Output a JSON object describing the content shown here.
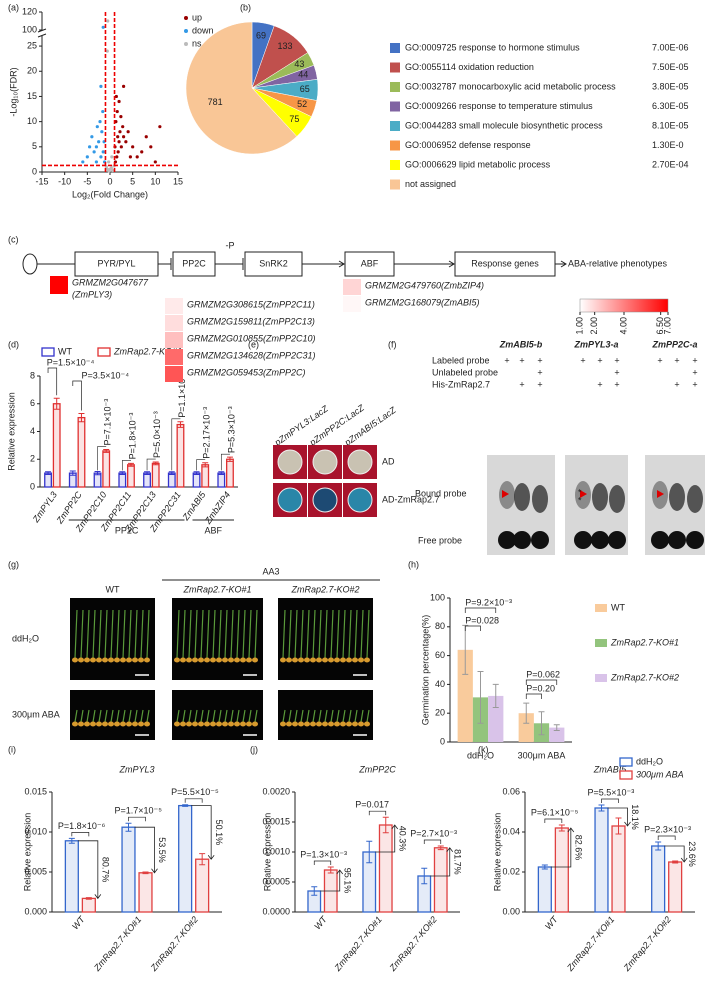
{
  "panel_labels": [
    "(a)",
    "(b)",
    "(c)",
    "(d)",
    "(e)",
    "(f)",
    "(g)",
    "(h)",
    "(i)",
    "(j)",
    "(k)"
  ],
  "chart_data": [
    {
      "type": "scatter",
      "xlabel": "Log₂(Fold Change)",
      "ylabel": "-Log₁₀(FDR)",
      "series": [
        {
          "name": "up",
          "color": "#990000",
          "x": [
            1.2,
            1.5,
            1.8,
            2,
            2.2,
            2.5,
            3,
            1.3,
            1.6,
            2,
            2.8,
            3.5,
            4,
            5,
            6,
            7,
            8,
            9,
            10,
            11,
            3,
            1.4,
            2.4,
            4.5,
            1.1,
            1.7
          ],
          "y": [
            2,
            3,
            4,
            6,
            8,
            5,
            7,
            10,
            12,
            14,
            9,
            6,
            8,
            5,
            3,
            4,
            7,
            5,
            2,
            9,
            17,
            15,
            11,
            3,
            5,
            7
          ]
        },
        {
          "name": "down",
          "color": "#3399e6",
          "x": [
            -1.2,
            -1.5,
            -2,
            -2.5,
            -3,
            -1.8,
            -2.2,
            -3.5,
            -4,
            -5,
            -6,
            -1.6,
            -2.8,
            -1.3,
            -2,
            -4.5,
            -3,
            -1.5
          ],
          "y": [
            2,
            4,
            3,
            6,
            5,
            8,
            10,
            4,
            7,
            3,
            2,
            12,
            9,
            6,
            17,
            5,
            2,
            103
          ]
        },
        {
          "name": "ns",
          "color": "#bbbbbb",
          "x": [
            -0.5,
            0.3,
            -0.8,
            0.6,
            0.9,
            -0.2,
            0.1,
            -0.6,
            -0.5,
            0.4,
            -0.3
          ],
          "y": [
            0.5,
            0.8,
            1,
            0.3,
            1.2,
            0.2,
            0.6,
            24,
            110,
            3,
            2
          ]
        }
      ],
      "xlim": [
        -15,
        15
      ],
      "xticks": [
        -15,
        -10,
        -5,
        0,
        5,
        10,
        15
      ],
      "ylim": [
        0,
        120
      ],
      "ybreak": [
        27,
        100
      ],
      "yticks": [
        0,
        5,
        10,
        15,
        20,
        25,
        100,
        120
      ],
      "thresholds": {
        "x": [
          -1,
          1
        ],
        "y": 1.3
      }
    },
    {
      "type": "pie",
      "categories": [
        "GO:0009725 response to hormone stimulus",
        "GO:0055114 oxidation reduction",
        "GO:0032787 monocarboxylic acid metabolic process",
        "GO:0009266 response to temperature stimulus",
        "GO:0044283 small molecule biosynthetic process",
        "GO:0006952 defense response",
        "GO:0006629 lipid metabolic process",
        "not assigned"
      ],
      "pvalues": [
        "7.00E-06",
        "7.50E-05",
        "3.80E-05",
        "6.30E-05",
        "8.10E-05",
        "1.30E-0",
        "2.70E-04",
        null
      ],
      "values": [
        69,
        133,
        43,
        44,
        65,
        52,
        75,
        781
      ],
      "colors": [
        "#4472c4",
        "#c0504d",
        "#9bbb59",
        "#8064a2",
        "#4bacc6",
        "#f79646",
        "#ffff00",
        "#f9c696"
      ]
    },
    {
      "type": "bar",
      "ylabel": "Relative expression",
      "categories": [
        "ZmPYL3",
        "ZmPP2C",
        "ZmPP2C10",
        "ZmPP2C11",
        "ZmPP2C13",
        "ZmPP2C31",
        "ZmABI5",
        "ZmbZIP4"
      ],
      "series": [
        {
          "name": "WT",
          "color": "#3333cc",
          "values": [
            1,
            1,
            1,
            1,
            1,
            1,
            1,
            1
          ],
          "errors": [
            0.1,
            0.15,
            0.12,
            0.1,
            0.1,
            0.1,
            0.1,
            0.1
          ]
        },
        {
          "name": "ZmRap2.7-KO#1",
          "color": "#e03030",
          "values": [
            6.0,
            5.0,
            2.6,
            1.6,
            1.7,
            4.5,
            1.6,
            2.0
          ],
          "errors": [
            0.4,
            0.3,
            0.1,
            0.1,
            0.1,
            0.2,
            0.15,
            0.15
          ]
        }
      ],
      "ylim": [
        0,
        8
      ],
      "yticks": [
        0,
        2,
        4,
        6,
        8
      ],
      "outline": true,
      "annotations": [
        "P=1.5×10⁻⁴",
        "P=3.5×10⁻⁴",
        "P=7.1×10⁻³",
        "P=1.8×10⁻³",
        "P=5.0×10⁻³",
        "P=1.1×10⁻⁵",
        "P=2.17×10⁻³",
        "P=5.3×10⁻³"
      ],
      "groups": [
        {
          "label": "PP2C",
          "span": [
            1,
            5
          ]
        },
        {
          "label": "ABF",
          "span": [
            6,
            7
          ]
        }
      ]
    },
    {
      "type": "bar",
      "ylabel": "Germination percentage(%)",
      "categories": [
        "ddH₂O",
        "300μm ABA"
      ],
      "series": [
        {
          "name": "WT",
          "color": "#f9cb9c",
          "values": [
            64,
            20
          ],
          "errors": [
            17,
            7
          ]
        },
        {
          "name": "ZmRap2.7-KO#1",
          "color": "#93c47d",
          "values": [
            31,
            13
          ],
          "errors": [
            18,
            8
          ]
        },
        {
          "name": "ZmRap2.7-KO#2",
          "color": "#d9c3e9",
          "values": [
            32,
            10
          ],
          "errors": [
            8,
            2
          ]
        }
      ],
      "ylim": [
        0,
        100
      ],
      "yticks": [
        0,
        20,
        40,
        60,
        80,
        100
      ],
      "outline": false,
      "annotations": [
        "P=9.2×10⁻³",
        "P=0.028",
        "P=0.20",
        "P=0.062"
      ]
    },
    {
      "type": "bar",
      "title": "ZmPYL3",
      "ylabel": "Relative expression",
      "categories": [
        "WT",
        "ZmRap2.7-KO#1",
        "ZmRap2.7-KO#2"
      ],
      "series": [
        {
          "name": "ddH₂O",
          "color": "#3366cc",
          "values": [
            0.0089,
            0.0106,
            0.0133
          ],
          "errors": [
            0.0003,
            0.0005,
            0.0001
          ]
        },
        {
          "name": "300μm ABA",
          "color": "#e04040",
          "values": [
            0.0017,
            0.0049,
            0.0066
          ],
          "errors": [
            0.0001,
            0.0001,
            0.0007
          ]
        }
      ],
      "ylim": [
        0,
        0.015
      ],
      "yticks": [
        {
          "value": 0,
          "label": "0.000"
        },
        {
          "value": 0.005,
          "label": "0.005"
        },
        {
          "value": 0.01,
          "label": "0.010"
        },
        {
          "value": 0.015,
          "label": "0.015"
        }
      ],
      "outline": true,
      "annotations": [
        "P=1.8×10⁻⁶",
        "P=1.7×10⁻⁵",
        "P=5.5×10⁻⁵"
      ],
      "changes": [
        "80.7%",
        "53.5%",
        "50.1%"
      ]
    },
    {
      "type": "bar",
      "title": "ZmPP2C",
      "ylabel": "Relative expression",
      "categories": [
        "WT",
        "ZmRap2.7-KO#1",
        "ZmRap2.7-KO#2"
      ],
      "series": [
        {
          "name": "ddH₂O",
          "color": "#3366cc",
          "values": [
            0.00035,
            0.001,
            0.0006
          ],
          "errors": [
            7e-05,
            0.00018,
            0.00013
          ]
        },
        {
          "name": "300μm ABA",
          "color": "#e04040",
          "values": [
            0.0007,
            0.00145,
            0.00107
          ],
          "errors": [
            5e-05,
            0.00013,
            3e-05
          ]
        }
      ],
      "ylim": [
        0,
        0.002
      ],
      "yticks": [
        {
          "value": 0,
          "label": "0.0000"
        },
        {
          "value": 0.0005,
          "label": "0.0005"
        },
        {
          "value": 0.001,
          "label": "0.0010"
        },
        {
          "value": 0.0015,
          "label": "0.0015"
        },
        {
          "value": 0.002,
          "label": "0.0020"
        }
      ],
      "outline": true,
      "annotations": [
        "P=1.3×10⁻³",
        "P=0.017",
        "P=2.7×10⁻³"
      ],
      "changes": [
        "95.1%",
        "40.3%",
        "81.7%"
      ]
    },
    {
      "type": "bar",
      "title": "ZmABI5",
      "ylabel": "Relative expression",
      "categories": [
        "WT",
        "ZmRap2.7-KO#1",
        "ZmRap2.7-KO#2"
      ],
      "series": [
        {
          "name": "ddH₂O",
          "color": "#3366cc",
          "values": [
            0.0225,
            0.052,
            0.033
          ],
          "errors": [
            0.001,
            0.0015,
            0.002
          ]
        },
        {
          "name": "300μm ABA",
          "color": "#e04040",
          "values": [
            0.042,
            0.043,
            0.025
          ],
          "errors": [
            0.0015,
            0.004,
            0.0005
          ]
        }
      ],
      "ylim": [
        0,
        0.06
      ],
      "yticks": [
        {
          "value": 0,
          "label": "0.00"
        },
        {
          "value": 0.02,
          "label": "0.02"
        },
        {
          "value": 0.04,
          "label": "0.04"
        },
        {
          "value": 0.06,
          "label": "0.06"
        }
      ],
      "outline": true,
      "annotations": [
        "P=6.1×10⁻⁵",
        "P=5.5×10⁻³",
        "P=2.3×10⁻³"
      ],
      "changes": [
        "82.6%",
        "18.1%",
        "23.6%"
      ]
    }
  ],
  "pathway": {
    "nodes": [
      "PYR/PYL",
      "PP2C",
      "SnRK2",
      "ABF",
      "Response genes"
    ],
    "end": "ABA-relative phenotypes",
    "phospho": "-P",
    "genes": [
      [
        {
          "label": "GRMZM2G047677",
          "alias": "(ZmPLY3)",
          "value": 7
        }
      ],
      [
        {
          "label": "GRMZM2G308615(ZmPP2C11)",
          "value": 1.5
        },
        {
          "label": "GRMZM2G159811(ZmPP2C13)",
          "value": 1.8
        },
        {
          "label": "GRMZM2G010855(ZmPP2C10)",
          "value": 2.5
        },
        {
          "label": "GRMZM2G134628(ZmPP2C31)",
          "value": 4.5
        },
        {
          "label": "GRMZM2G059453(ZmPP2C)",
          "value": 5
        }
      ],
      [],
      [
        {
          "label": "GRMZM2G479760(ZmbZIP4)",
          "value": 2
        },
        {
          "label": "GRMZM2G168079(ZmABI5)",
          "value": 1.2
        }
      ],
      []
    ],
    "scale": {
      "lim": [
        1,
        7
      ],
      "colors": [
        "#ffffff",
        "#ff0000"
      ],
      "ticks": [
        {
          "value": 1,
          "label": "1.00"
        },
        {
          "value": 2,
          "label": "2.00"
        },
        {
          "value": 4,
          "label": "4.00"
        },
        {
          "value": 6.5,
          "label": "6.50"
        },
        {
          "value": 7,
          "label": "7.00"
        }
      ]
    }
  },
  "yeast": {
    "columns": [
      "pZmPYL3:LacZ",
      "pZmPP2C:LacZ",
      "pZmABI5:LacZ"
    ],
    "rows": [
      "AD",
      "AD-ZmRap2.7"
    ]
  },
  "emsa": {
    "rows": [
      "Labeled probe",
      "Unlabeled probe",
      "His-ZmRap2.7"
    ],
    "bands": [
      "Bound probe",
      "Free probe"
    ],
    "markers": [
      "*",
      "*"
    ],
    "gels": [
      {
        "title": "ZmABI5-b",
        "signs": [
          [
            "+",
            "+",
            "+"
          ],
          [
            null,
            null,
            "+"
          ],
          [
            null,
            "+",
            "+"
          ]
        ]
      },
      {
        "title": "ZmPYL3-a",
        "signs": [
          [
            "+",
            "+",
            "+"
          ],
          [
            null,
            null,
            "+"
          ],
          [
            null,
            "+",
            "+"
          ]
        ]
      },
      {
        "title": "ZmPP2C-a",
        "signs": [
          [
            "+",
            "+",
            "+"
          ],
          [
            null,
            null,
            "+"
          ],
          [
            null,
            "+",
            "+"
          ]
        ]
      }
    ]
  },
  "photos": {
    "group": "AA3",
    "columns": [
      "WT",
      "ZmRap2.7-KO#1",
      "ZmRap2.7-KO#2"
    ],
    "rows": [
      "ddH₂O",
      "300μm ABA"
    ]
  }
}
